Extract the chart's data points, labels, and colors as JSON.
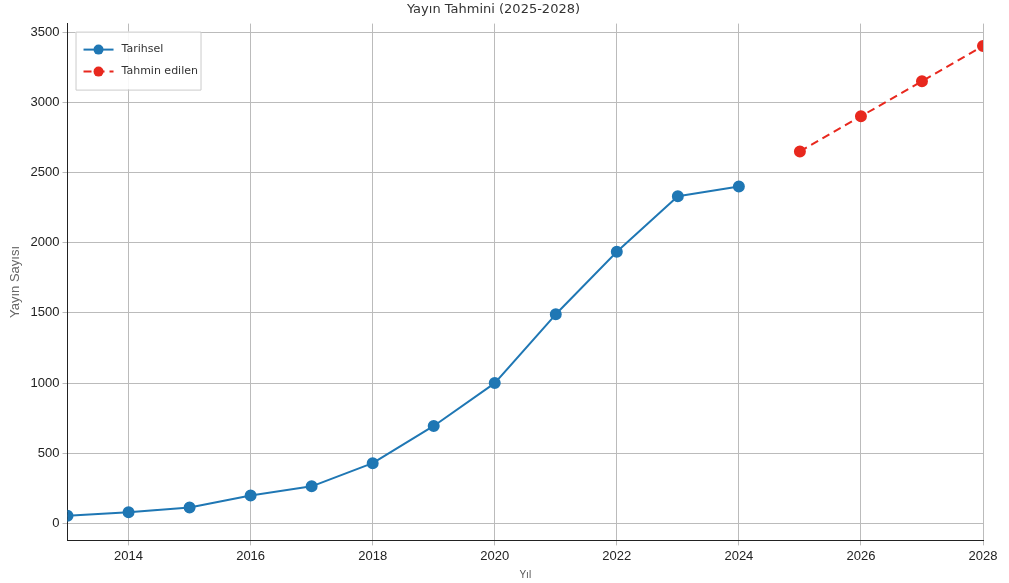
{
  "chart_data": {
    "type": "line",
    "title": "Yayın Tahmini (2025-2028)",
    "xlabel": "Yıl",
    "ylabel": "Yayın Sayısı",
    "xlim": [
      2013,
      2028
    ],
    "xticks": [
      2014,
      2016,
      2018,
      2020,
      2022,
      2024,
      2026,
      2028
    ],
    "ylim": [
      -120,
      3560
    ],
    "yticks": [
      0,
      500,
      1000,
      1500,
      2000,
      2500,
      3000,
      3500
    ],
    "grid": true,
    "legend": "top left",
    "marker": "circle",
    "series": [
      {
        "name": "Tarihsel",
        "color": "#1f77b4",
        "line_style": "solid",
        "x": [
          2013,
          2014,
          2015,
          2016,
          2017,
          2018,
          2019,
          2020,
          2021,
          2022,
          2023,
          2024
        ],
        "values": [
          55,
          80,
          115,
          200,
          265,
          430,
          695,
          1000,
          1490,
          1935,
          2330,
          2400
        ]
      },
      {
        "name": "Tahmin edilen",
        "color": "#e8281e",
        "line_style": "dashed",
        "x": [
          2025,
          2026,
          2027,
          2028
        ],
        "values": [
          2650,
          2900,
          3150,
          3400
        ]
      }
    ]
  }
}
